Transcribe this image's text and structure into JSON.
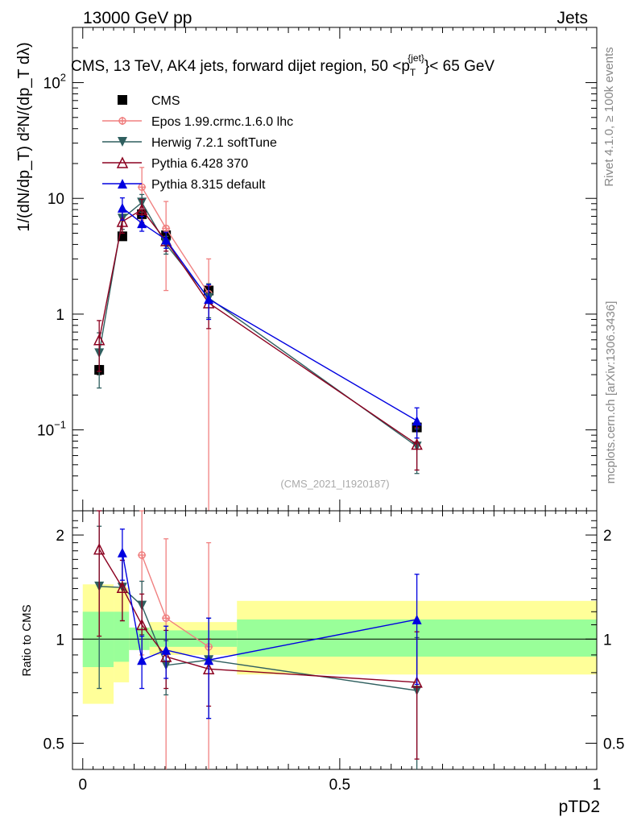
{
  "header": {
    "energy": "13000 GeV pp",
    "category": "Jets"
  },
  "side": {
    "rivet": "Rivet 4.1.0, ≥ 100k events",
    "mcplots": "mcplots.cern.ch [arXiv:1306.3436]"
  },
  "colors": {
    "cms": "#000000",
    "epos": "#f08080",
    "herwig": "#2f5f5f",
    "pythia6": "#8b0020",
    "pythia8": "#0000e0",
    "band_inner": "#99ff99",
    "band_outer": "#ffff99"
  },
  "chart_data": [
    {
      "type": "scatter",
      "panel": "main",
      "title": "CMS, 13 TeV, AK4 jets, forward dijet region, 50 <p_T^{jet}< 65 GeV",
      "title_text": "CMS, 13 TeV, AK4 jets, forward dijet region, 50 <p",
      "title_sup": "{jet}",
      "title_sub": "T",
      "title_tail": "}< 65 GeV",
      "ylabel": "1/(dN/dp_T) d²N/(dp_T dλ)",
      "yscale": "log",
      "ylim": [
        0.02,
        300
      ],
      "xlim": [
        -0.02,
        1.0
      ],
      "yticks": [
        {
          "v": 0.1,
          "base": "10",
          "exp": "−1"
        },
        {
          "v": 1,
          "base": "1",
          "exp": ""
        },
        {
          "v": 10,
          "base": "10",
          "exp": ""
        },
        {
          "v": 100,
          "base": "10",
          "exp": "2"
        }
      ],
      "watermark": "(CMS_2021_I1920187)",
      "legend_position": "top-left",
      "x": [
        0.032,
        0.077,
        0.115,
        0.162,
        0.245,
        0.65
      ],
      "series": [
        {
          "key": "cms",
          "name": "CMS",
          "marker": "square",
          "values": [
            0.33,
            4.7,
            7.3,
            4.8,
            1.6,
            0.105
          ],
          "err": [
            0.03,
            0.3,
            0.4,
            0.3,
            0.1,
            0.008
          ]
        },
        {
          "key": "epos",
          "name": "Epos 1.99.crmc.1.6.0 lhc",
          "marker": "cross",
          "values": [
            null,
            null,
            12.5,
            5.5,
            1.5,
            null
          ],
          "err": [
            null,
            null,
            6.0,
            3.9,
            1.5,
            null
          ]
        },
        {
          "key": "herwig",
          "name": "Herwig 7.2.1 softTune",
          "marker": "tri-down",
          "values": [
            0.46,
            6.7,
            9.2,
            4.0,
            1.38,
            0.072
          ],
          "err": [
            0.23,
            1.3,
            1.6,
            0.7,
            0.45,
            0.03
          ]
        },
        {
          "key": "pythia6",
          "name": "Pythia 6.428 370",
          "marker": "tri-up-open",
          "values": [
            0.6,
            6.3,
            8.0,
            4.3,
            1.25,
            0.075
          ],
          "err": [
            0.28,
            1.3,
            1.8,
            0.8,
            0.5,
            0.03
          ]
        },
        {
          "key": "pythia8",
          "name": "Pythia 8.315 default",
          "marker": "tri-up",
          "values": [
            null,
            8.3,
            6.1,
            4.4,
            1.35,
            0.12
          ],
          "err": [
            null,
            1.8,
            0.9,
            0.7,
            0.45,
            0.035
          ]
        }
      ]
    },
    {
      "type": "scatter",
      "panel": "ratio",
      "ylabel": "Ratio to CMS",
      "xlabel": "pTD2",
      "yscale": "log",
      "ylim": [
        0.42,
        2.35
      ],
      "xlim": [
        -0.02,
        1.0
      ],
      "xticks": [
        {
          "v": 0,
          "label": "0"
        },
        {
          "v": 0.5,
          "label": "0.5"
        },
        {
          "v": 1,
          "label": "1"
        }
      ],
      "yticks": [
        {
          "v": 0.5,
          "label": "0.5"
        },
        {
          "v": 1,
          "label": "1"
        },
        {
          "v": 2,
          "label": "2"
        }
      ],
      "bands": [
        {
          "x0": 0.0,
          "x1": 0.06,
          "inner": [
            0.83,
            1.2
          ],
          "outer": [
            0.65,
            1.44
          ]
        },
        {
          "x0": 0.06,
          "x1": 0.09,
          "inner": [
            0.86,
            1.2
          ],
          "outer": [
            0.75,
            1.41
          ]
        },
        {
          "x0": 0.09,
          "x1": 0.13,
          "inner": [
            0.93,
            1.08
          ],
          "outer": [
            0.93,
            1.08
          ]
        },
        {
          "x0": 0.13,
          "x1": 0.3,
          "inner": [
            0.95,
            1.06
          ],
          "outer": [
            0.9,
            1.12
          ]
        },
        {
          "x0": 0.3,
          "x1": 1.0,
          "inner": [
            0.89,
            1.14
          ],
          "outer": [
            0.79,
            1.29
          ]
        }
      ],
      "x": [
        0.032,
        0.077,
        0.115,
        0.162,
        0.245,
        0.65
      ],
      "series": [
        {
          "key": "epos",
          "name": "Epos",
          "values": [
            null,
            null,
            1.75,
            1.15,
            0.95,
            null
          ],
          "err": [
            null,
            null,
            0.85,
            0.8,
            0.95,
            null
          ]
        },
        {
          "key": "herwig",
          "name": "Herwig",
          "values": [
            1.42,
            1.41,
            1.25,
            0.84,
            0.87,
            0.71
          ],
          "err": [
            0.7,
            0.28,
            0.22,
            0.15,
            0.28,
            0.3
          ]
        },
        {
          "key": "pythia6",
          "name": "Pythia 6",
          "values": [
            1.82,
            1.41,
            1.1,
            0.89,
            0.82,
            0.75
          ],
          "err": [
            0.8,
            0.28,
            0.25,
            0.17,
            0.18,
            0.3
          ]
        },
        {
          "key": "pythia8",
          "name": "Pythia 8",
          "values": [
            null,
            1.78,
            0.87,
            0.93,
            0.87,
            1.14
          ],
          "err": [
            null,
            0.3,
            0.15,
            0.16,
            0.28,
            0.4
          ]
        }
      ]
    }
  ]
}
